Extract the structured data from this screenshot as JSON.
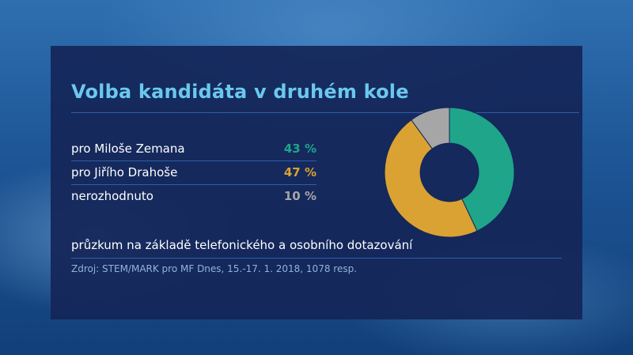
{
  "title": "Volba kandidáta v druhém kole",
  "chart_data": {
    "type": "pie",
    "title": "Volba kandidáta v druhém kole",
    "categories": [
      "pro Miloše Zemana",
      "pro Jiřího Drahoše",
      "nerozhodnuto"
    ],
    "values": [
      43,
      47,
      10
    ],
    "value_labels": [
      "43 %",
      "47 %",
      "10 %"
    ],
    "colors": [
      "#1ea58a",
      "#d9a232",
      "#a6a6a6"
    ],
    "hole": 0.45
  },
  "footer": {
    "note": "průzkum na základě telefonického a osobního dotazování",
    "source": "Zdroj: STEM/MARK pro MF Dnes, 15.-17. 1. 2018, 1078 resp."
  }
}
